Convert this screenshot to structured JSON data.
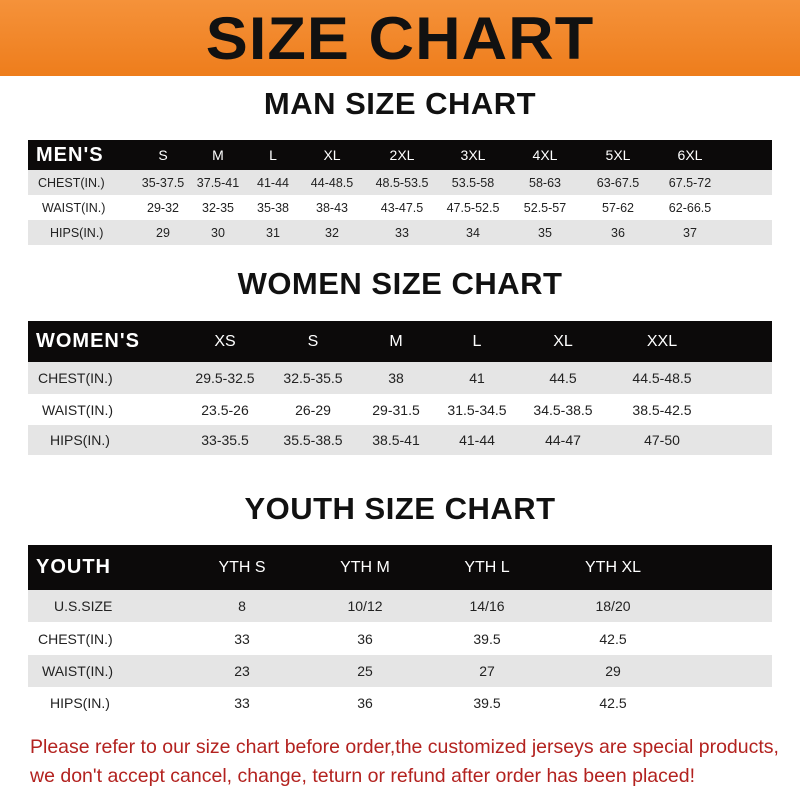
{
  "banner": {
    "title": "SIZE CHART",
    "color": "#ee7d1c"
  },
  "men": {
    "title": "MAN SIZE CHART",
    "header": "MEN'S",
    "sizes": [
      "S",
      "M",
      "L",
      "XL",
      "2XL",
      "3XL",
      "4XL",
      "5XL",
      "6XL"
    ],
    "rows": [
      {
        "label": "CHEST(IN.)",
        "values": [
          "35-37.5",
          "37.5-41",
          "41-44",
          "44-48.5",
          "48.5-53.5",
          "53.5-58",
          "58-63",
          "63-67.5",
          "67.5-72"
        ]
      },
      {
        "label": "WAIST(IN.)",
        "values": [
          "29-32",
          "32-35",
          "35-38",
          "38-43",
          "43-47.5",
          "47.5-52.5",
          "52.5-57",
          "57-62",
          "62-66.5"
        ]
      },
      {
        "label": "HIPS(IN.)",
        "values": [
          "29",
          "30",
          "31",
          "32",
          "33",
          "34",
          "35",
          "36",
          "37"
        ]
      }
    ]
  },
  "women": {
    "title": "WOMEN SIZE CHART",
    "header": "WOMEN'S",
    "sizes": [
      "XS",
      "S",
      "M",
      "L",
      "XL",
      "XXL"
    ],
    "rows": [
      {
        "label": "CHEST(IN.)",
        "values": [
          "29.5-32.5",
          "32.5-35.5",
          "38",
          "41",
          "44.5",
          "44.5-48.5"
        ]
      },
      {
        "label": "WAIST(IN.)",
        "values": [
          "23.5-26",
          "26-29",
          "29-31.5",
          "31.5-34.5",
          "34.5-38.5",
          "38.5-42.5"
        ]
      },
      {
        "label": "HIPS(IN.)",
        "values": [
          "33-35.5",
          "35.5-38.5",
          "38.5-41",
          "41-44",
          "44-47",
          "47-50"
        ]
      }
    ]
  },
  "youth": {
    "title": "YOUTH SIZE CHART",
    "header": "YOUTH",
    "sizes": [
      "YTH S",
      "YTH M",
      "YTH L",
      "YTH XL"
    ],
    "rows": [
      {
        "label": "U.S.SIZE",
        "values": [
          "8",
          "10/12",
          "14/16",
          "18/20"
        ]
      },
      {
        "label": "CHEST(IN.)",
        "values": [
          "33",
          "36",
          "39.5",
          "42.5"
        ]
      },
      {
        "label": "WAIST(IN.)",
        "values": [
          "23",
          "25",
          "27",
          "29"
        ]
      },
      {
        "label": "HIPS(IN.)",
        "values": [
          "33",
          "36",
          "39.5",
          "42.5"
        ]
      }
    ]
  },
  "notice": {
    "line1": "Please refer to our size chart before order,the customized jerseys are special products,",
    "line2": "we don't accept cancel, change, teturn or refund after order has been placed!",
    "color": "#b3221f"
  }
}
